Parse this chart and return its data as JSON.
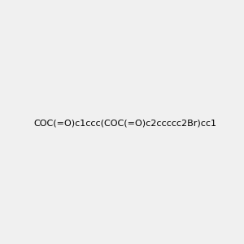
{
  "smiles": "COC(=O)c1ccc(COC(=O)c2ccccc2Br)cc1",
  "image_size": 300,
  "background_color": "#f0f0f0",
  "title": ""
}
